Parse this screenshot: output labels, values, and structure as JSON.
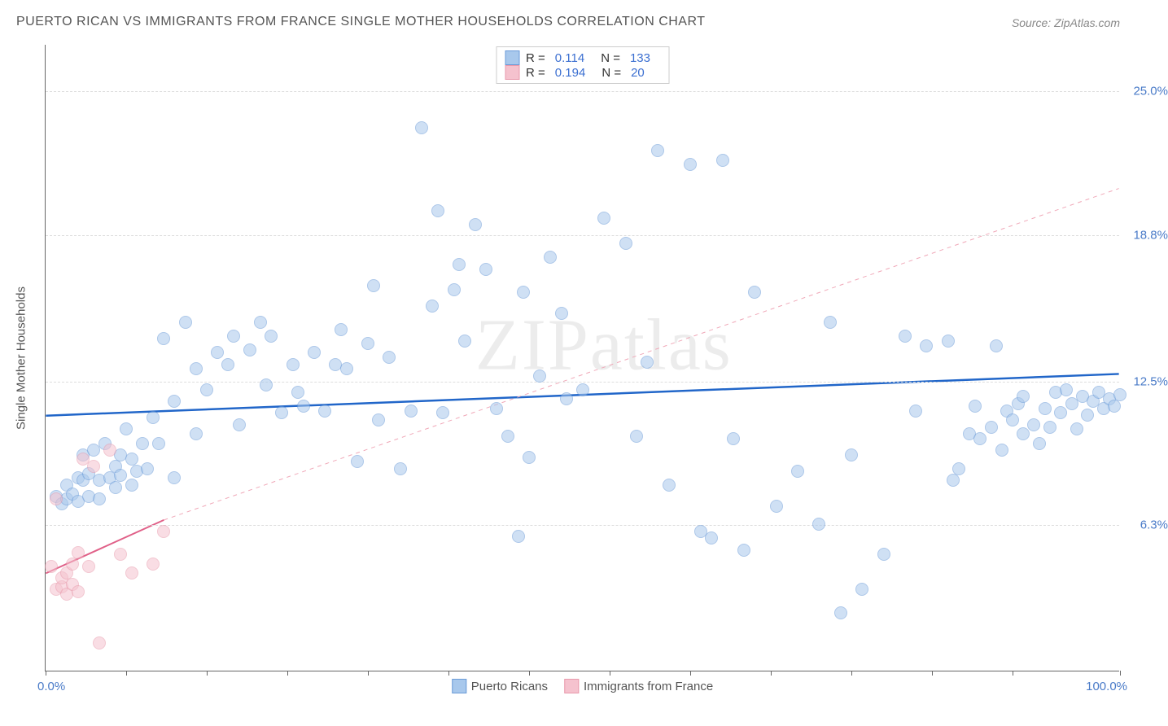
{
  "title": "PUERTO RICAN VS IMMIGRANTS FROM FRANCE SINGLE MOTHER HOUSEHOLDS CORRELATION CHART",
  "source": "Source: ZipAtlas.com",
  "watermark": "ZIPatlas",
  "yaxis_title": "Single Mother Households",
  "chart": {
    "type": "scatter",
    "background_color": "#ffffff",
    "grid_color": "#dddddd",
    "xlim": [
      0,
      100
    ],
    "ylim": [
      0,
      27
    ],
    "x_min_label": "0.0%",
    "x_max_label": "100.0%",
    "x_ticks": [
      0,
      7.5,
      15,
      22.5,
      30,
      37.5,
      45,
      52.5,
      60,
      67.5,
      75,
      82.5,
      90,
      100
    ],
    "y_gridlines": [
      {
        "value": 6.3,
        "label": "6.3%"
      },
      {
        "value": 12.5,
        "label": "12.5%"
      },
      {
        "value": 18.8,
        "label": "18.8%"
      },
      {
        "value": 25.0,
        "label": "25.0%"
      }
    ],
    "series": [
      {
        "name": "Puerto Ricans",
        "fill_color": "#a8c8ec",
        "stroke_color": "#6b9bd8",
        "marker_radius": 8,
        "R": "0.114",
        "N": "133",
        "trend": {
          "x1": 0,
          "y1": 11.0,
          "x2": 100,
          "y2": 12.8,
          "color": "#2166c9",
          "width": 2.5,
          "dash": "none"
        },
        "trend_ext": null,
        "points": [
          [
            1,
            7.5
          ],
          [
            1.5,
            7.2
          ],
          [
            2,
            7.4
          ],
          [
            2,
            8.0
          ],
          [
            2.5,
            7.6
          ],
          [
            3,
            7.3
          ],
          [
            3,
            8.3
          ],
          [
            3.5,
            9.3
          ],
          [
            3.5,
            8.2
          ],
          [
            4,
            7.5
          ],
          [
            4,
            8.5
          ],
          [
            4.5,
            9.5
          ],
          [
            5,
            8.2
          ],
          [
            5,
            7.4
          ],
          [
            5.5,
            9.8
          ],
          [
            6,
            8.3
          ],
          [
            6.5,
            8.8
          ],
          [
            6.5,
            7.9
          ],
          [
            7,
            9.3
          ],
          [
            7,
            8.4
          ],
          [
            7.5,
            10.4
          ],
          [
            8,
            8.0
          ],
          [
            8,
            9.1
          ],
          [
            8.5,
            8.6
          ],
          [
            9,
            9.8
          ],
          [
            9.5,
            8.7
          ],
          [
            10,
            10.9
          ],
          [
            10.5,
            9.8
          ],
          [
            11,
            14.3
          ],
          [
            12,
            11.6
          ],
          [
            12,
            8.3
          ],
          [
            13,
            15.0
          ],
          [
            14,
            10.2
          ],
          [
            14,
            13.0
          ],
          [
            15,
            12.1
          ],
          [
            16,
            13.7
          ],
          [
            17,
            13.2
          ],
          [
            17.5,
            14.4
          ],
          [
            18,
            10.6
          ],
          [
            19,
            13.8
          ],
          [
            20,
            15.0
          ],
          [
            20.5,
            12.3
          ],
          [
            21,
            14.4
          ],
          [
            22,
            11.1
          ],
          [
            23,
            13.2
          ],
          [
            23.5,
            12.0
          ],
          [
            24,
            11.4
          ],
          [
            25,
            13.7
          ],
          [
            26,
            11.2
          ],
          [
            27,
            13.2
          ],
          [
            27.5,
            14.7
          ],
          [
            28,
            13.0
          ],
          [
            29,
            9.0
          ],
          [
            30,
            14.1
          ],
          [
            30.5,
            16.6
          ],
          [
            31,
            10.8
          ],
          [
            32,
            13.5
          ],
          [
            33,
            8.7
          ],
          [
            34,
            11.2
          ],
          [
            35,
            23.4
          ],
          [
            36,
            15.7
          ],
          [
            36.5,
            19.8
          ],
          [
            37,
            11.1
          ],
          [
            38,
            16.4
          ],
          [
            38.5,
            17.5
          ],
          [
            39,
            14.2
          ],
          [
            40,
            19.2
          ],
          [
            41,
            17.3
          ],
          [
            42,
            11.3
          ],
          [
            43,
            10.1
          ],
          [
            44,
            5.8
          ],
          [
            44.5,
            16.3
          ],
          [
            45,
            9.2
          ],
          [
            46,
            12.7
          ],
          [
            47,
            17.8
          ],
          [
            48,
            15.4
          ],
          [
            48.5,
            11.7
          ],
          [
            50,
            12.1
          ],
          [
            52,
            19.5
          ],
          [
            54,
            18.4
          ],
          [
            55,
            10.1
          ],
          [
            56,
            13.3
          ],
          [
            57,
            22.4
          ],
          [
            58,
            8.0
          ],
          [
            60,
            21.8
          ],
          [
            61,
            6.0
          ],
          [
            62,
            5.7
          ],
          [
            63,
            22.0
          ],
          [
            64,
            10.0
          ],
          [
            65,
            5.2
          ],
          [
            66,
            16.3
          ],
          [
            68,
            7.1
          ],
          [
            70,
            8.6
          ],
          [
            72,
            6.3
          ],
          [
            73,
            15.0
          ],
          [
            74,
            2.5
          ],
          [
            75,
            9.3
          ],
          [
            76,
            3.5
          ],
          [
            78,
            5.0
          ],
          [
            80,
            14.4
          ],
          [
            81,
            11.2
          ],
          [
            82,
            14.0
          ],
          [
            84,
            14.2
          ],
          [
            84.5,
            8.2
          ],
          [
            85,
            8.7
          ],
          [
            86,
            10.2
          ],
          [
            86.5,
            11.4
          ],
          [
            87,
            10.0
          ],
          [
            88,
            10.5
          ],
          [
            88.5,
            14.0
          ],
          [
            89,
            9.5
          ],
          [
            89.5,
            11.2
          ],
          [
            90,
            10.8
          ],
          [
            90.5,
            11.5
          ],
          [
            91,
            10.2
          ],
          [
            91,
            11.8
          ],
          [
            92,
            10.6
          ],
          [
            92.5,
            9.8
          ],
          [
            93,
            11.3
          ],
          [
            93.5,
            10.5
          ],
          [
            94,
            12.0
          ],
          [
            94.5,
            11.1
          ],
          [
            95,
            12.1
          ],
          [
            95.5,
            11.5
          ],
          [
            96,
            10.4
          ],
          [
            96.5,
            11.8
          ],
          [
            97,
            11.0
          ],
          [
            97.5,
            11.6
          ],
          [
            98,
            12.0
          ],
          [
            98.5,
            11.3
          ],
          [
            99,
            11.7
          ],
          [
            99.5,
            11.4
          ],
          [
            100,
            11.9
          ]
        ]
      },
      {
        "name": "Immigrants from France",
        "fill_color": "#f5c2ce",
        "stroke_color": "#e89aac",
        "marker_radius": 8,
        "R": "0.194",
        "N": "20",
        "trend": {
          "x1": 0,
          "y1": 4.2,
          "x2": 11,
          "y2": 6.5,
          "color": "#e06088",
          "width": 2,
          "dash": "none"
        },
        "trend_ext": {
          "x1": 11,
          "y1": 6.5,
          "x2": 100,
          "y2": 20.8,
          "color": "#f0a8b8",
          "width": 1,
          "dash": "5,5"
        },
        "points": [
          [
            0.5,
            4.5
          ],
          [
            1,
            3.5
          ],
          [
            1,
            7.4
          ],
          [
            1.5,
            3.6
          ],
          [
            1.5,
            4.0
          ],
          [
            2,
            4.2
          ],
          [
            2,
            3.3
          ],
          [
            2.5,
            4.6
          ],
          [
            2.5,
            3.7
          ],
          [
            3,
            3.4
          ],
          [
            3,
            5.1
          ],
          [
            3.5,
            9.1
          ],
          [
            4,
            4.5
          ],
          [
            4.5,
            8.8
          ],
          [
            5,
            1.2
          ],
          [
            6,
            9.5
          ],
          [
            7,
            5.0
          ],
          [
            8,
            4.2
          ],
          [
            10,
            4.6
          ],
          [
            11,
            6.0
          ]
        ]
      }
    ]
  }
}
